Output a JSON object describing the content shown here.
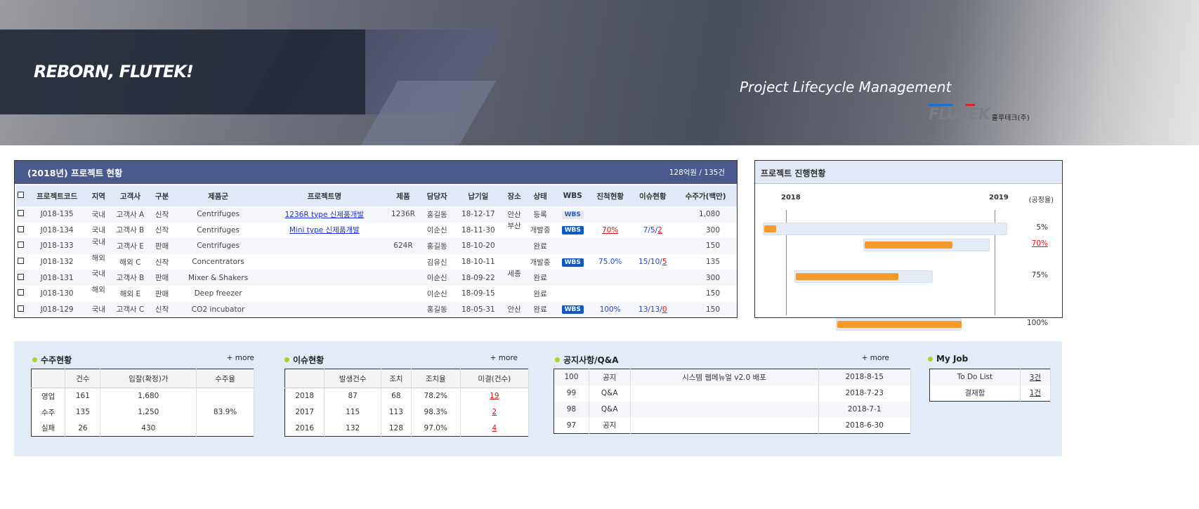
{
  "banner": {
    "slogan": "REBORN, FLUTEK!",
    "subtitle": "Project Lifecycle Management",
    "logo_mark": "FLUTEK",
    "logo_kr": "훌루테크(주)"
  },
  "projects": {
    "title": "(2018년) 프로젝트 현황",
    "summary": "128억원 / 135건",
    "columns": [
      "프로젝트코드",
      "지역",
      "고객사",
      "구분",
      "제품군",
      "프로젝트명",
      "제품",
      "담당자",
      "납기일",
      "장소",
      "상태",
      "WBS",
      "진척현황",
      "이슈현황",
      "수주가(백만)"
    ],
    "rows": [
      {
        "code": "J018-135",
        "region": "국내",
        "customer": "고객사 A",
        "type": "신작",
        "group": "Centrifuges",
        "name": "1236R type 신제품개발",
        "product": "1236R",
        "owner": "홍길동",
        "due": "18-12-17",
        "place": "안산",
        "status": "등록",
        "wbs": "WBS",
        "wbs_state": "inactive",
        "progress": "",
        "issue": [
          "",
          "",
          ""
        ],
        "price": "1,080"
      },
      {
        "code": "J018-134",
        "region": "국내",
        "customer": "고객사 B",
        "type": "신작",
        "group": "Centrifuges",
        "name": "Mini type 신제품개발",
        "product": "",
        "owner": "이순신",
        "due": "18-11-30",
        "place": "부산",
        "status": "개발중",
        "wbs": "WBS",
        "wbs_state": "active",
        "progress": "70%",
        "issue": [
          "7/5/",
          "2"
        ],
        "price": "300"
      },
      {
        "code": "J018-133",
        "region": "국내",
        "customer": "고객사 E",
        "type": "판매",
        "group": "Centrifuges",
        "name": "",
        "product": "624R",
        "owner": "홍길동",
        "due": "18-10-20",
        "place": "",
        "status": "완료",
        "wbs": "",
        "progress": "",
        "issue": [
          "",
          ""
        ],
        "price": "150"
      },
      {
        "code": "J018-132",
        "region": "해외",
        "customer": "해외 C",
        "type": "신작",
        "group": "Concentrators",
        "name": "",
        "product": "",
        "owner": "김유신",
        "due": "18-10-11",
        "place": "",
        "status": "개발중",
        "wbs": "WBS",
        "wbs_state": "active",
        "progress": "75.0%",
        "issue": [
          "15/10/",
          "5"
        ],
        "price": "135"
      },
      {
        "code": "J018-131",
        "region": "국내",
        "customer": "고객사 B",
        "type": "판매",
        "group": "Mixer & Shakers",
        "name": "",
        "product": "",
        "owner": "이순신",
        "due": "18-09-22",
        "place": "세종",
        "status": "완료",
        "wbs": "",
        "progress": "",
        "issue": [
          "",
          ""
        ],
        "price": "300"
      },
      {
        "code": "J018-130",
        "region": "해외",
        "customer": "해외 E",
        "type": "판매",
        "group": "Deep freezer",
        "name": "",
        "product": "",
        "owner": "이순신",
        "due": "18-09-15",
        "place": "",
        "status": "완료",
        "wbs": "",
        "progress": "",
        "issue": [
          "",
          ""
        ],
        "price": "150"
      },
      {
        "code": "J018-129",
        "region": "국내",
        "customer": "고객사 C",
        "type": "신작",
        "group": "CO2 incubator",
        "name": "",
        "product": "",
        "owner": "홍길동",
        "due": "18-05-31",
        "place": "안산",
        "status": "완료",
        "wbs": "WBS",
        "wbs_state": "active",
        "progress": "100%",
        "issue": [
          "13/13/",
          "0"
        ],
        "price": "150"
      }
    ]
  },
  "gantt": {
    "title": "프로젝트 진행현황",
    "years": [
      "2018",
      "2019"
    ],
    "unit": "(공정율)",
    "rows": [
      {
        "progress": 5,
        "label": "5%"
      },
      {
        "progress": 70,
        "label": "70%",
        "alert": true
      },
      null,
      {
        "progress": 75,
        "label": "75%"
      },
      null,
      null,
      {
        "progress": 100,
        "label": "100%"
      }
    ]
  },
  "orders": {
    "title": "수주현황",
    "more": "+ more",
    "columns": [
      "",
      "건수",
      "입찰(확정)가",
      "수주율"
    ],
    "rows": [
      [
        "영업",
        "161",
        "1,680"
      ],
      [
        "수주",
        "135",
        "1,250"
      ],
      [
        "실패",
        "26",
        "430"
      ]
    ],
    "rate": "83.9%"
  },
  "issues": {
    "title": "이슈현황",
    "more": "+ more",
    "columns": [
      "",
      "발생건수",
      "조치",
      "조치율",
      "미결(건수)"
    ],
    "rows": [
      [
        "2018",
        "87",
        "68",
        "78.2%",
        "19"
      ],
      [
        "2017",
        "115",
        "113",
        "98.3%",
        "2"
      ],
      [
        "2016",
        "132",
        "128",
        "97.0%",
        "4"
      ]
    ]
  },
  "notice": {
    "title": "공지사항/Q&A",
    "more": "+ more",
    "rows": [
      [
        "100",
        "공지",
        "시스템 웹메뉴얼 v2.0 배포",
        "2018-8-15"
      ],
      [
        "99",
        "Q&A",
        "",
        "2018-7-23"
      ],
      [
        "98",
        "Q&A",
        "",
        "2018-7-1"
      ],
      [
        "97",
        "공지",
        "",
        "2018-6-30"
      ]
    ]
  },
  "myjob": {
    "title": "My Job",
    "rows": [
      [
        "To Do List",
        "3건"
      ],
      [
        "결재함",
        "1건"
      ]
    ]
  },
  "colors": {
    "header": "#495a8c",
    "accent": "#f59a2a",
    "link": "#1b2ee8",
    "alert": "#e01010"
  }
}
